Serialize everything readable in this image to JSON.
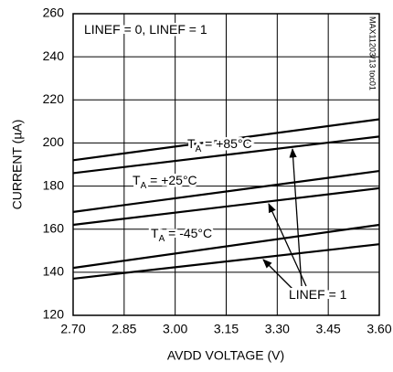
{
  "chart_data": {
    "type": "line",
    "xlabel": "AVDD VOLTAGE (V)",
    "ylabel": "CURRENT (µA)",
    "x": [
      2.7,
      3.6
    ],
    "series": [
      {
        "color": "#000000",
        "values": [
          192,
          211
        ]
      },
      {
        "color": "#000000",
        "values": [
          186,
          203
        ]
      },
      {
        "color": "#000000",
        "values": [
          168,
          187
        ]
      },
      {
        "color": "#000000",
        "values": [
          162,
          179
        ]
      },
      {
        "color": "#000000",
        "values": [
          142,
          162
        ]
      },
      {
        "color": "#000000",
        "values": [
          137,
          153
        ]
      }
    ],
    "xlim": [
      2.7,
      3.6
    ],
    "xticks": [
      {
        "value": 2.7,
        "label": "2.70"
      },
      {
        "value": 2.85,
        "label": "2.85"
      },
      {
        "value": 3.0,
        "label": "3.00"
      },
      {
        "value": 3.15,
        "label": "3.15"
      },
      {
        "value": 3.3,
        "label": "3.30"
      },
      {
        "value": 3.45,
        "label": "3.45"
      },
      {
        "value": 3.6,
        "label": "3.60"
      }
    ],
    "ylim": [
      120,
      260
    ],
    "yticks": [
      120,
      140,
      160,
      180,
      200,
      220,
      240,
      260
    ],
    "grid": true,
    "annotations": [
      {
        "main": "LINEF = 0, LINEF = 1"
      },
      {
        "main": "T",
        "sub": "A",
        "rest": " = +85°C"
      },
      {
        "main": "T",
        "sub": "A",
        "rest": " = +25°C"
      },
      {
        "main": "T",
        "sub": "A",
        "rest": " = -45°C"
      },
      {
        "main": "LINEF = 1"
      }
    ],
    "side_note": "MAX11203/13 toc01"
  }
}
